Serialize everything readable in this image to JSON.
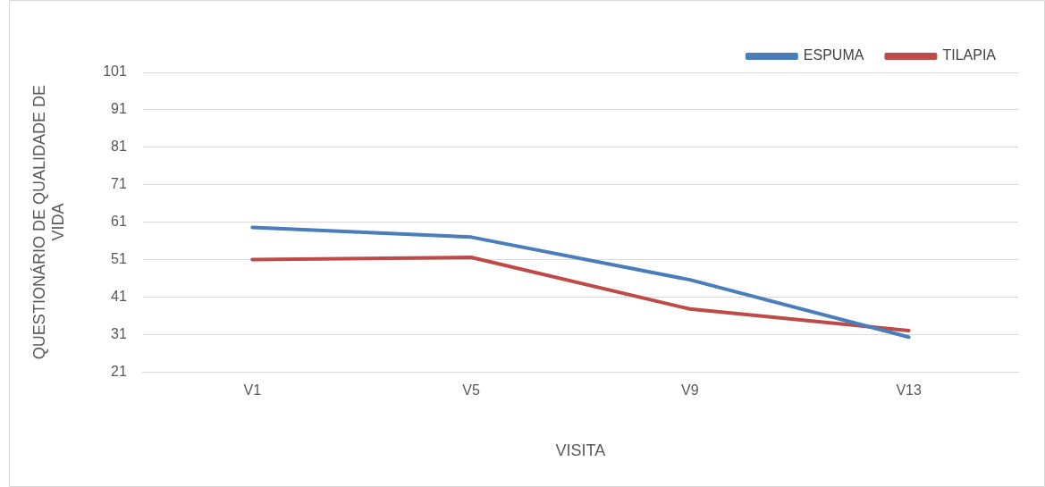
{
  "chart_data": {
    "type": "line",
    "xlabel": "VISITA",
    "ylabel": "QUESTIONÁRIO DE QUALIDADE DE VIDA",
    "categories": [
      "V1",
      "V5",
      "V9",
      "V13"
    ],
    "series": [
      {
        "name": "ESPUMA",
        "color": "#4a7ebb",
        "values": [
          59.6,
          57,
          45.6,
          30.3
        ]
      },
      {
        "name": "TILAPIA",
        "color": "#be4b48",
        "values": [
          51,
          51.6,
          37.8,
          32
        ]
      }
    ],
    "ylim": [
      21,
      101
    ],
    "yticks": [
      21,
      31,
      41,
      51,
      61,
      71,
      81,
      91,
      101
    ],
    "grid": "y",
    "legend": "top right",
    "marker": "none",
    "line_style": "solid"
  }
}
